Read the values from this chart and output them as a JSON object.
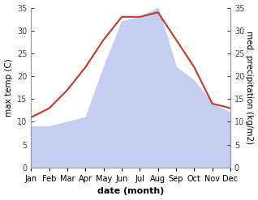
{
  "months": [
    "Jan",
    "Feb",
    "Mar",
    "Apr",
    "May",
    "Jun",
    "Jul",
    "Aug",
    "Sep",
    "Oct",
    "Nov",
    "Dec"
  ],
  "temperature": [
    11,
    13,
    17,
    22,
    28,
    33,
    33,
    34,
    28,
    22,
    14,
    13
  ],
  "precipitation": [
    9,
    9,
    10,
    11,
    22,
    32,
    33,
    35,
    22,
    19,
    14,
    12
  ],
  "temp_color": "#c0392b",
  "precip_fill_color": "#c5cdf0",
  "ylim": [
    0,
    35
  ],
  "yticks": [
    0,
    5,
    10,
    15,
    20,
    25,
    30,
    35
  ],
  "xlabel": "date (month)",
  "ylabel_left": "max temp (C)",
  "ylabel_right": "med. precipitation (kg/m2)",
  "bg_color": "#ffffff",
  "spine_color": "#999999",
  "tick_color": "#444444",
  "label_fontsize": 7.5,
  "tick_fontsize": 7,
  "xlabel_fontsize": 8
}
